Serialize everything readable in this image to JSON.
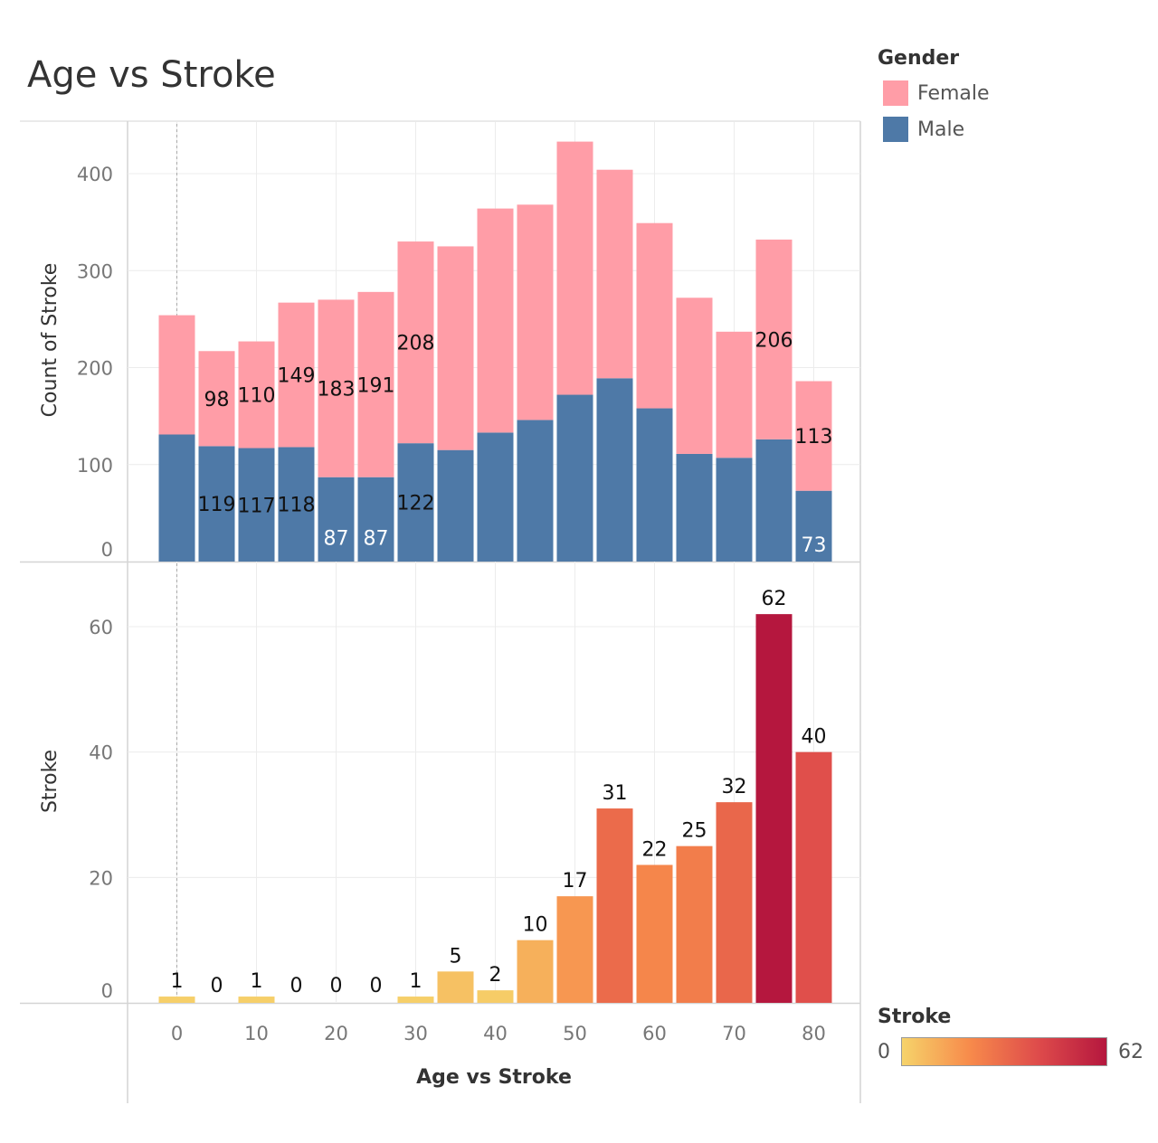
{
  "title": "Age vs Stroke",
  "legend": {
    "title": "Gender",
    "items": [
      {
        "label": "Female",
        "color": "#ff9da7"
      },
      {
        "label": "Male",
        "color": "#4e79a7"
      }
    ]
  },
  "color_legend": {
    "title": "Stroke",
    "min_label": "0",
    "max_label": "62",
    "colors": [
      "#f6d36a",
      "#f78a4b",
      "#de4b4b",
      "#b5173e"
    ]
  },
  "chart_data": [
    {
      "type": "bar",
      "stacked": true,
      "ylabel": "Count of Stroke",
      "ylim": [
        0,
        450
      ],
      "yticks": [
        0,
        100,
        200,
        300,
        400
      ],
      "x": [
        0,
        5,
        10,
        15,
        20,
        25,
        30,
        35,
        40,
        45,
        50,
        55,
        60,
        65,
        70,
        75,
        80
      ],
      "series": [
        {
          "name": "Male",
          "color": "#4e79a7",
          "values": [
            131,
            119,
            117,
            118,
            87,
            87,
            122,
            115,
            133,
            146,
            172,
            189,
            158,
            111,
            107,
            126,
            73
          ],
          "labels": [
            "",
            "119",
            "117",
            "118",
            "87",
            "87",
            "122",
            "",
            "",
            "",
            "",
            "",
            "",
            "",
            "",
            "",
            "73"
          ]
        },
        {
          "name": "Female",
          "color": "#ff9da7",
          "values": [
            123,
            98,
            110,
            149,
            183,
            191,
            208,
            210,
            231,
            222,
            261,
            215,
            191,
            161,
            130,
            206,
            113
          ],
          "labels": [
            "",
            "98",
            "110",
            "149",
            "183",
            "191",
            "208",
            "",
            "",
            "",
            "",
            "",
            "",
            "",
            "",
            "206",
            "113"
          ]
        }
      ]
    },
    {
      "type": "bar",
      "ylabel": "Stroke",
      "xlabel": "Age vs Stroke",
      "ylim": [
        0,
        69
      ],
      "yticks": [
        0,
        20,
        40,
        60
      ],
      "xticks": [
        0,
        10,
        20,
        30,
        40,
        50,
        60,
        70,
        80
      ],
      "x": [
        0,
        5,
        10,
        15,
        20,
        25,
        30,
        35,
        40,
        45,
        50,
        55,
        60,
        65,
        70,
        75,
        80
      ],
      "values": [
        1,
        0,
        1,
        0,
        0,
        0,
        1,
        5,
        2,
        10,
        17,
        31,
        22,
        25,
        32,
        62,
        40
      ]
    }
  ]
}
